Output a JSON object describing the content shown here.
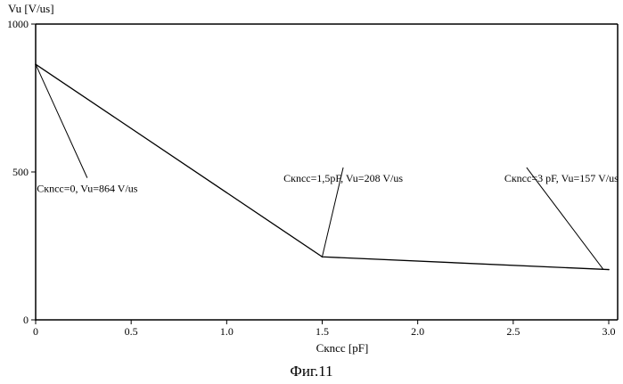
{
  "figure": {
    "caption": "Фиг.11"
  },
  "chart_data": {
    "type": "line",
    "ylabel": "Vu [V/us]",
    "xlabel": "Cкncc [pF]",
    "xlim": [
      0,
      3.0
    ],
    "ylim": [
      0,
      1000
    ],
    "x_ticks": [
      "0",
      "0.5",
      "1.0",
      "1.5",
      "2.0",
      "2.5",
      "3.0"
    ],
    "x_tick_values": [
      0,
      0.5,
      1.0,
      1.5,
      2.0,
      2.5,
      3.0
    ],
    "y_ticks": [
      "0",
      "500",
      "1000"
    ],
    "y_tick_values": [
      0,
      500,
      1000
    ],
    "grid": false,
    "series": [
      {
        "x": [
          0,
          1.5,
          3.0
        ],
        "y": [
          864,
          213,
          170
        ]
      }
    ],
    "annotations": [
      {
        "text": "Cкncc=0, Vu=864 V/us",
        "point_x": 0,
        "point_y": 864,
        "text_x": 0.27,
        "text_y": 480
      },
      {
        "text": "Cкncc=1,5pF, Vu=208 V/us",
        "point_x": 1.5,
        "point_y": 213,
        "text_x": 1.61,
        "text_y": 515
      },
      {
        "text": "Cкncc=3 pF, Vu=157 V/us",
        "point_x": 2.97,
        "point_y": 172,
        "text_x": 2.57,
        "text_y": 515
      }
    ]
  }
}
